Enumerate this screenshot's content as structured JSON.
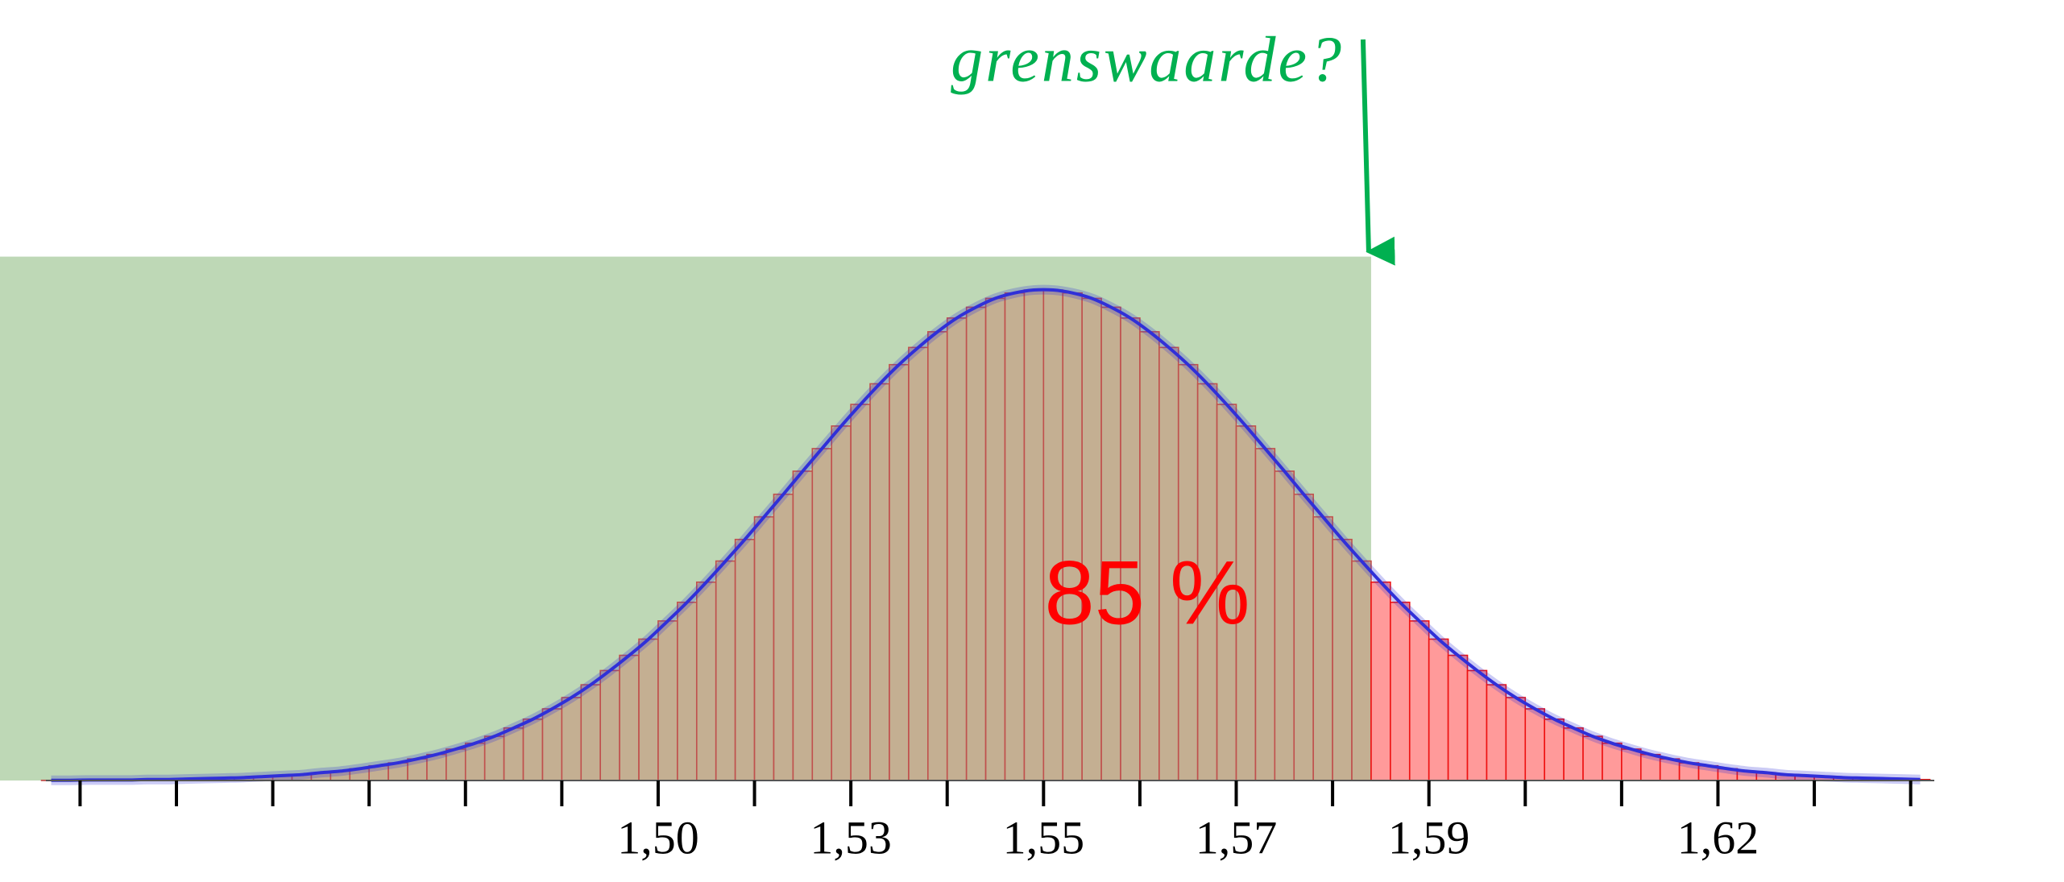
{
  "chart_data": {
    "type": "histogram",
    "threshold_label": "grenswaarde?",
    "region_label": "85 %",
    "threshold": 1.5849,
    "region_color": "#bed8b6",
    "color": "#c5a88c",
    "edge_color": "#c0504d",
    "highlight_color": "#ff9a9a",
    "highlight_edge_color": "#ee1111",
    "curve_color": "#3030d8",
    "threshold_color": "#00b050",
    "xlim": [
      1.4336,
      1.6492
    ],
    "ylim": [
      0,
      106.7
    ],
    "xticks": [
      {
        "value": 1.5035,
        "label": "1,50"
      },
      {
        "value": 1.5255,
        "label": "1,53"
      },
      {
        "value": 1.5475,
        "label": "1,55"
      },
      {
        "value": 1.5695,
        "label": "1,57"
      },
      {
        "value": 1.5915,
        "label": "1,59"
      },
      {
        "value": 1.6245,
        "label": "1,62"
      }
    ],
    "xminor_ticks": [
      1.4375,
      1.4485,
      1.4595,
      1.4705,
      1.4815,
      1.4925,
      1.5145,
      1.5365,
      1.5585,
      1.5805,
      1.6025,
      1.6135,
      1.6355,
      1.6465
    ],
    "bins": [
      1.4331,
      1.4353,
      1.4375,
      1.4397,
      1.4419,
      1.4441,
      1.4463,
      1.4485,
      1.4507,
      1.4529,
      1.4551,
      1.4573,
      1.4595,
      1.4617,
      1.4639,
      1.4661,
      1.4683,
      1.4705,
      1.4727,
      1.4749,
      1.4771,
      1.4793,
      1.4815,
      1.4837,
      1.4859,
      1.4881,
      1.4903,
      1.4925,
      1.4947,
      1.4969,
      1.4991,
      1.5013,
      1.5035,
      1.5057,
      1.5079,
      1.5101,
      1.5123,
      1.5145,
      1.5167,
      1.5189,
      1.5211,
      1.5233,
      1.5255,
      1.5277,
      1.5299,
      1.5321,
      1.5343,
      1.5365,
      1.5387,
      1.5409,
      1.5431,
      1.5453,
      1.5475,
      1.5497,
      1.5519,
      1.5541,
      1.5563,
      1.5585,
      1.5607,
      1.5629,
      1.5651,
      1.5673,
      1.5695,
      1.5717,
      1.5739,
      1.5761,
      1.5783,
      1.5805,
      1.5827,
      1.5849,
      1.5871,
      1.5893,
      1.5915,
      1.5937,
      1.5959,
      1.5981,
      1.6003,
      1.6025,
      1.6047,
      1.6069,
      1.6091,
      1.6113,
      1.6135,
      1.6157,
      1.6179,
      1.6201,
      1.6223,
      1.6245,
      1.6267,
      1.6289,
      1.6311,
      1.6333,
      1.6355,
      1.6377,
      1.6399,
      1.6421,
      1.6443,
      1.6465,
      1.6487
    ],
    "values": [
      0.04,
      0.05,
      0.1,
      0.1,
      0.1,
      0.2,
      0.2,
      0.3,
      0.4,
      0.5,
      0.6,
      0.8,
      1.0,
      1.2,
      1.6,
      1.9,
      2.4,
      3.0,
      3.6,
      4.4,
      5.3,
      6.4,
      7.6,
      9.0,
      10.7,
      12.5,
      14.6,
      16.9,
      19.5,
      22.4,
      25.5,
      28.8,
      32.5,
      36.3,
      40.4,
      44.7,
      49.1,
      53.7,
      58.3,
      63.0,
      67.6,
      72.2,
      76.6,
      80.8,
      84.7,
      88.2,
      91.4,
      94.2,
      96.4,
      98.2,
      99.3,
      99.9,
      99.9,
      99.3,
      98.2,
      96.4,
      94.2,
      91.4,
      88.2,
      84.7,
      80.8,
      76.6,
      72.2,
      67.6,
      63.0,
      58.3,
      53.7,
      49.1,
      44.7,
      40.4,
      36.3,
      32.5,
      28.8,
      25.5,
      22.4,
      19.5,
      16.9,
      14.6,
      12.5,
      10.7,
      9.0,
      7.6,
      6.4,
      5.3,
      4.4,
      3.6,
      3.0,
      2.4,
      1.9,
      1.6,
      1.2,
      1.0,
      0.8,
      0.6,
      0.5,
      0.4,
      0.3,
      0.2
    ]
  }
}
